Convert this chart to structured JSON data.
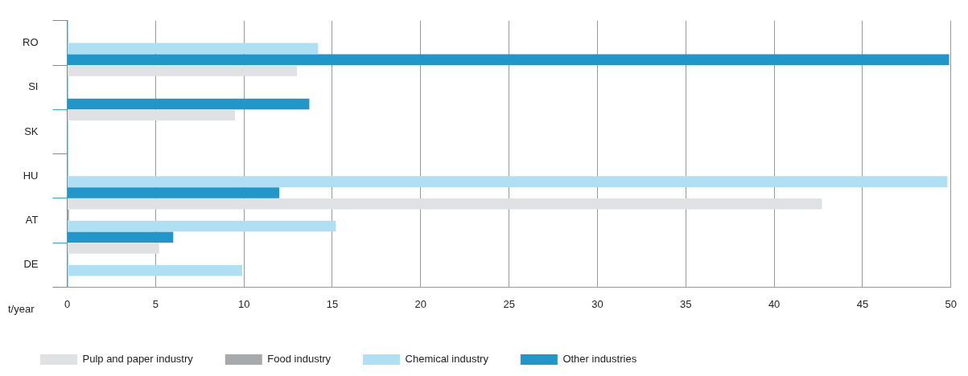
{
  "chart_data": {
    "type": "bar",
    "orientation": "horizontal",
    "xlabel": "t/year",
    "categories": [
      "RO",
      "SI",
      "SK",
      "HU",
      "AT",
      "DE"
    ],
    "series": [
      {
        "name": "Pulp and paper industry",
        "color": "#e0e1e3",
        "values": [
          null,
          13.0,
          9.5,
          null,
          42.7,
          5.2
        ]
      },
      {
        "name": "Food industry",
        "color": "#a8a9ab",
        "values": [
          null,
          null,
          null,
          null,
          0.1,
          null
        ]
      },
      {
        "name": "Chemical industry",
        "color": "#aedff2",
        "values": [
          14.2,
          null,
          null,
          49.8,
          15.2,
          9.9
        ]
      },
      {
        "name": "Other industries",
        "color": "#2196c8",
        "values": [
          49.9,
          13.7,
          null,
          12.0,
          6.0,
          null
        ]
      }
    ],
    "xlim": [
      0,
      50
    ],
    "xticks": [
      0,
      5,
      10,
      15,
      20,
      25,
      30,
      35,
      40,
      45,
      50
    ],
    "grid": "x",
    "legend": "bottom left"
  }
}
